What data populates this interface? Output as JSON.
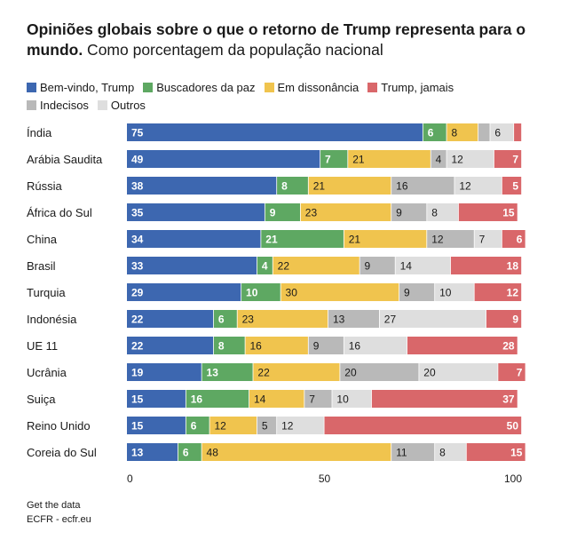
{
  "title_bold": "Opiniões globais sobre o que o retorno de Trump representa para o mundo.",
  "title_sub": " Como porcentagem da população nacional",
  "footer": {
    "get_data": "Get the data",
    "source": "ECFR - ecfr.eu"
  },
  "chart_data": {
    "type": "bar",
    "orientation": "horizontal",
    "stacked": true,
    "categories": [
      "Índia",
      "Arábia Saudita",
      "Rússia",
      "África do Sul",
      "China",
      "Brasil",
      "Turquia",
      "Indonésia",
      "UE 11",
      "Ucrânia",
      "Suiça",
      "Reino Unido",
      "Coreia do Sul"
    ],
    "series": [
      {
        "name": "Bem-vindo, Trump",
        "color": "#3d67b0",
        "label_color": "#ffffff",
        "values": [
          75,
          49,
          38,
          35,
          34,
          33,
          29,
          22,
          22,
          19,
          15,
          15,
          13
        ]
      },
      {
        "name": "Buscadores da paz",
        "color": "#5ea862",
        "label_color": "#ffffff",
        "values": [
          6,
          7,
          8,
          9,
          21,
          4,
          10,
          6,
          8,
          13,
          16,
          6,
          6
        ]
      },
      {
        "name": "Em dissonância",
        "color": "#f0c44e",
        "label_color": "#1a1a1a",
        "values": [
          8,
          21,
          21,
          23,
          21,
          22,
          30,
          23,
          16,
          22,
          14,
          12,
          48
        ]
      },
      {
        "name": "Indecisos",
        "color": "#b9b9b9",
        "label_color": "#1a1a1a",
        "values": [
          3,
          4,
          16,
          9,
          12,
          9,
          9,
          13,
          9,
          20,
          7,
          5,
          11
        ]
      },
      {
        "name": "Outros",
        "color": "#dedede",
        "label_color": "#1a1a1a",
        "values": [
          6,
          12,
          12,
          8,
          7,
          14,
          10,
          27,
          16,
          20,
          10,
          12,
          8
        ]
      },
      {
        "name": "Trump, jamais",
        "color": "#d9676a",
        "label_color": "#ffffff",
        "values": [
          2,
          7,
          5,
          15,
          6,
          18,
          12,
          9,
          28,
          7,
          37,
          50,
          15
        ]
      }
    ],
    "legend_order": [
      "Bem-vindo, Trump",
      "Buscadores da paz",
      "Em dissonância",
      "Trump, jamais",
      "Indecisos",
      "Outros"
    ],
    "xlim": [
      0,
      100
    ],
    "xticks": [
      0,
      50,
      100
    ],
    "hidden_labels": {
      "3": [
        0
      ],
      "5": [
        0
      ]
    }
  }
}
